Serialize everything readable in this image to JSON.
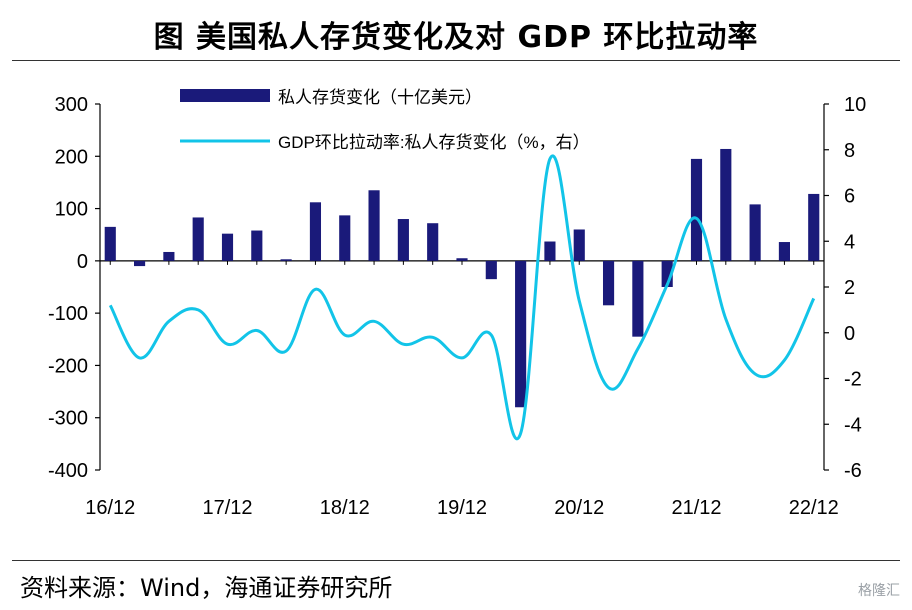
{
  "title": "图  美国私人存货变化及对 GDP 环比拉动率",
  "source": "资料来源：Wind，海通证券研究所",
  "watermark": "格隆汇",
  "chart_data": {
    "type": "bar+line",
    "categories": [
      "16/12",
      "17/3",
      "17/6",
      "17/9",
      "17/12",
      "18/3",
      "18/6",
      "18/9",
      "18/12",
      "19/3",
      "19/6",
      "19/9",
      "19/12",
      "20/3",
      "20/6",
      "20/9",
      "20/12",
      "21/3",
      "21/6",
      "21/9",
      "21/12",
      "22/3",
      "22/6",
      "22/9",
      "22/12"
    ],
    "x_tick_labels": [
      "16/12",
      "17/12",
      "18/12",
      "19/12",
      "20/12",
      "21/12",
      "22/12"
    ],
    "left_axis": {
      "ylim": [
        -400,
        300
      ],
      "ticks": [
        "300",
        "200",
        "100",
        "0",
        "-100",
        "-200",
        "-300",
        "-400"
      ]
    },
    "right_axis": {
      "ylim": [
        -6,
        10
      ],
      "ticks": [
        "10",
        "8",
        "6",
        "4",
        "2",
        "0",
        "-2",
        "-4",
        "-6"
      ]
    },
    "series": [
      {
        "name": "私人存货变化（十亿美元）",
        "type": "bar",
        "axis": "left",
        "color": "#1a1a7a",
        "values": [
          65,
          -10,
          17,
          83,
          52,
          58,
          3,
          112,
          87,
          135,
          80,
          72,
          5,
          -35,
          -280,
          37,
          60,
          -85,
          -145,
          -50,
          195,
          214,
          108,
          36,
          128
        ]
      },
      {
        "name": "GDP环比拉动率:私人存货变化（%，右）",
        "type": "line",
        "axis": "right",
        "color": "#12c4e8",
        "values": [
          1.2,
          -1.1,
          0.5,
          1.0,
          -0.5,
          0.1,
          -0.8,
          1.9,
          -0.1,
          0.5,
          -0.5,
          -0.2,
          -1.1,
          -0.1,
          -4.4,
          7.6,
          1.4,
          -2.4,
          -0.7,
          2.1,
          5.0,
          0.6,
          -1.8,
          -1.2,
          1.5
        ]
      }
    ]
  }
}
